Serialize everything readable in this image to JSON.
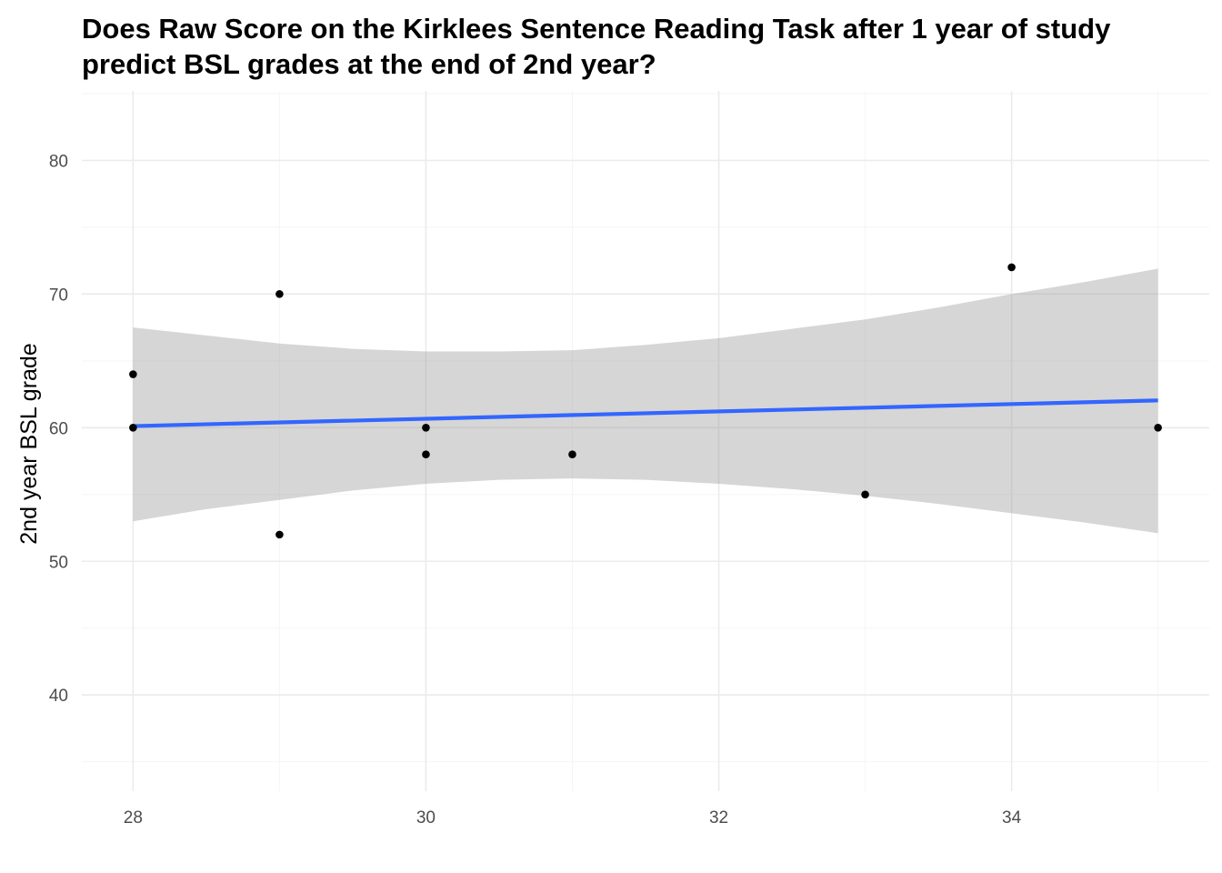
{
  "chart_data": {
    "type": "scatter",
    "title": [
      "Does Raw Score on the Kirklees Sentence Reading Task after 1 year of study",
      "predict BSL grades at the end of 2nd year?"
    ],
    "xlabel": "",
    "ylabel": "2nd year BSL grade",
    "xlim": [
      27.65,
      35.35
    ],
    "ylim": [
      32.8,
      85.2
    ],
    "x_major_ticks": [
      28,
      30,
      32,
      34
    ],
    "x_minor_ticks": [
      29,
      31,
      33,
      35
    ],
    "y_major_ticks": [
      40,
      50,
      60,
      70,
      80
    ],
    "y_minor_ticks": [
      35,
      45,
      55,
      65,
      75,
      85
    ],
    "grid": true,
    "legend": "none",
    "points": [
      {
        "x": 28,
        "y": 64
      },
      {
        "x": 28,
        "y": 60
      },
      {
        "x": 29,
        "y": 70
      },
      {
        "x": 29,
        "y": 52
      },
      {
        "x": 30,
        "y": 60
      },
      {
        "x": 30,
        "y": 58
      },
      {
        "x": 31,
        "y": 58
      },
      {
        "x": 33,
        "y": 55
      },
      {
        "x": 34,
        "y": 72
      },
      {
        "x": 35,
        "y": 60
      }
    ],
    "fit_line": {
      "method": "linear",
      "x": [
        28,
        35
      ],
      "y": [
        60.12,
        62.04
      ]
    },
    "confidence_band": {
      "x": [
        28,
        28.5,
        29,
        29.5,
        30,
        30.5,
        31,
        31.5,
        32,
        32.5,
        33,
        33.5,
        34,
        34.5,
        35
      ],
      "upper": [
        67.5,
        66.9,
        66.3,
        65.9,
        65.7,
        65.7,
        65.8,
        66.2,
        66.7,
        67.4,
        68.1,
        69.0,
        70.0,
        70.9,
        71.9
      ],
      "lower": [
        53.0,
        53.9,
        54.6,
        55.3,
        55.8,
        56.1,
        56.2,
        56.1,
        55.8,
        55.4,
        54.9,
        54.3,
        53.6,
        52.9,
        52.1
      ]
    },
    "colors": {
      "points": "#000000",
      "fit_line": "#3366FF",
      "band": "#999999",
      "major_grid": "#EBEBEB",
      "minor_grid": "#F5F5F5",
      "tick_text": "#4D4D4D"
    }
  }
}
